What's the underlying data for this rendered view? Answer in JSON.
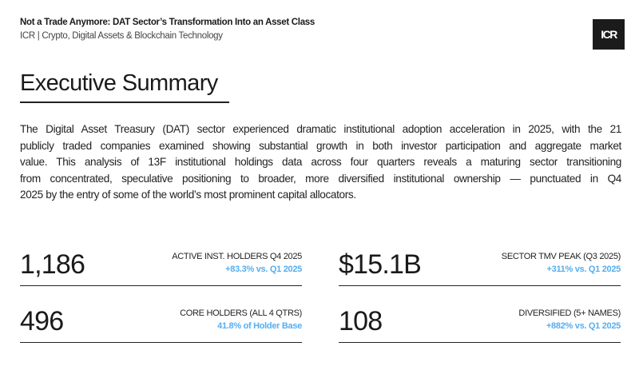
{
  "header": {
    "title": "Not a Trade Anymore: DAT Sector’s Transformation Into an Asset Class",
    "subtitle": "ICR | Crypto, Digital Assets & Blockchain Technology",
    "logo_text": "ICR"
  },
  "section": {
    "heading": "Executive Summary",
    "paragraph_lines": [
      "The Digital Asset Treasury (DAT) sector experienced dramatic institutional adoption acceleration in 2025, with the 21",
      "publicly traded companies examined showing substantial growth in both investor participation and aggregate market",
      "value. This analysis of 13F institutional holdings data across four quarters reveals a maturing sector transitioning",
      "from concentrated, speculative positioning to broader, more diversified institutional ownership — punctuated in Q4",
      "2025 by the entry of some of the world’s most prominent capital allocators."
    ]
  },
  "stats": [
    {
      "value": "1,186",
      "label": "ACTIVE INST. HOLDERS Q4 2025",
      "change": "+83.3% vs. Q1 2025"
    },
    {
      "value": "$15.1B",
      "label": "SECTOR TMV PEAK (Q3 2025)",
      "change": "+311% vs. Q1 2025"
    },
    {
      "value": "496",
      "label": "CORE HOLDERS (ALL 4 QTRS)",
      "change": "41.8% of Holder Base"
    },
    {
      "value": "108",
      "label": "DIVERSIFIED (5+ NAMES)",
      "change": "+882% vs. Q1 2025"
    }
  ],
  "colors": {
    "accent": "#55aef0",
    "text": "#1a1a1a",
    "logo_bg": "#1b1b1b"
  }
}
